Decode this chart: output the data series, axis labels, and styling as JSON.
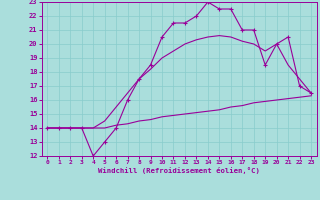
{
  "xlabel": "Windchill (Refroidissement éolien,°C)",
  "xlim": [
    -0.5,
    23.5
  ],
  "ylim": [
    12,
    23
  ],
  "xticks": [
    0,
    1,
    2,
    3,
    4,
    5,
    6,
    7,
    8,
    9,
    10,
    11,
    12,
    13,
    14,
    15,
    16,
    17,
    18,
    19,
    20,
    21,
    22,
    23
  ],
  "yticks": [
    12,
    13,
    14,
    15,
    16,
    17,
    18,
    19,
    20,
    21,
    22,
    23
  ],
  "bg_color": "#aadedc",
  "line_color": "#990099",
  "grid_color": "#88cccc",
  "line1_x": [
    0,
    1,
    2,
    3,
    4,
    5,
    6,
    7,
    8,
    9,
    10,
    11,
    12,
    13,
    14,
    15,
    16,
    17,
    18,
    19,
    20,
    21,
    22,
    23
  ],
  "line1_y": [
    14.0,
    14.0,
    14.0,
    14.0,
    14.0,
    14.0,
    14.2,
    14.3,
    14.5,
    14.6,
    14.8,
    14.9,
    15.0,
    15.1,
    15.2,
    15.3,
    15.5,
    15.6,
    15.8,
    15.9,
    16.0,
    16.1,
    16.2,
    16.3
  ],
  "line2_x": [
    0,
    1,
    2,
    3,
    4,
    5,
    6,
    7,
    8,
    9,
    10,
    11,
    12,
    13,
    14,
    15,
    16,
    17,
    18,
    19,
    20,
    21,
    22,
    23
  ],
  "line2_y": [
    14.0,
    14.0,
    14.0,
    14.0,
    14.0,
    14.5,
    15.5,
    16.5,
    17.5,
    18.2,
    19.0,
    19.5,
    20.0,
    20.3,
    20.5,
    20.6,
    20.5,
    20.2,
    20.0,
    19.5,
    20.0,
    18.5,
    17.5,
    16.5
  ],
  "line3_x": [
    0,
    1,
    2,
    3,
    4,
    5,
    6,
    7,
    8,
    9,
    10,
    11,
    12,
    13,
    14,
    15,
    16,
    17,
    18,
    19,
    20,
    21,
    22,
    23
  ],
  "line3_y": [
    14.0,
    14.0,
    14.0,
    14.0,
    12.0,
    13.0,
    14.0,
    16.0,
    17.5,
    18.5,
    20.5,
    21.5,
    21.5,
    22.0,
    23.0,
    22.5,
    22.5,
    21.0,
    21.0,
    18.5,
    20.0,
    20.5,
    17.0,
    16.5
  ]
}
